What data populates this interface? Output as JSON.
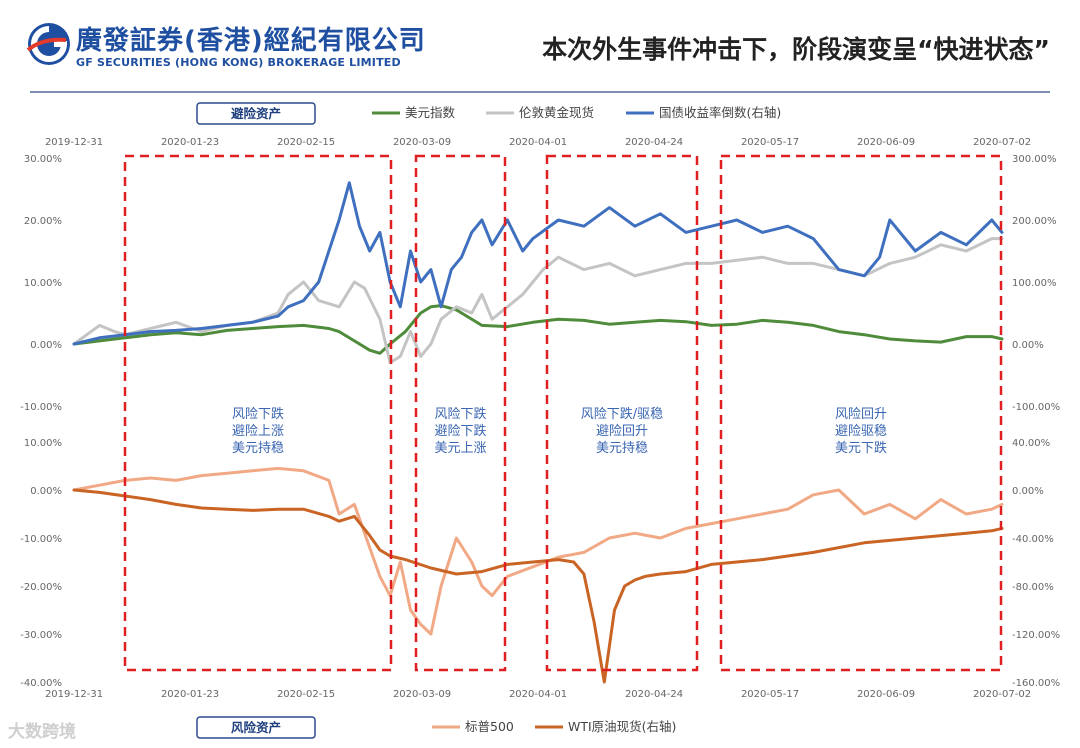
{
  "header": {
    "brand_cn": "廣發証券(香港)經紀有限公司",
    "brand_en": "GF SECURITIES (HONG KONG) BROKERAGE LIMITED",
    "title": "本次外生事件冲击下，阶段演变呈“快进状态”"
  },
  "watermark": "大数跨境",
  "chart_data": [
    {
      "type": "line",
      "panel_label": "避险资产",
      "x_ticks": [
        "2019-12-31",
        "2020-01-23",
        "2020-02-15",
        "2020-03-09",
        "2020-04-01",
        "2020-04-24",
        "2020-05-17",
        "2020-06-09",
        "2020-07-02"
      ],
      "y_left": {
        "ticks": [
          "30.00%",
          "20.00%",
          "10.00%",
          "0.00%",
          "-10.00%"
        ],
        "lim": [
          -10,
          30
        ]
      },
      "y_right": {
        "ticks": [
          "300.00%",
          "200.00%",
          "100.00%",
          "0.00%",
          "-100.00%"
        ],
        "lim": [
          -100,
          300
        ]
      },
      "series": [
        {
          "name": "美元指数",
          "axis": "left",
          "color": "#4e8b3a",
          "x": [
            0,
            5,
            10,
            15,
            20,
            25,
            30,
            35,
            40,
            45,
            50,
            52,
            55,
            58,
            60,
            62,
            65,
            68,
            70,
            72,
            75,
            80,
            85,
            90,
            95,
            100,
            105,
            110,
            115,
            120,
            125,
            130,
            135,
            140,
            145,
            150,
            155,
            160,
            165,
            170,
            175,
            180,
            182
          ],
          "values": [
            0,
            0.5,
            1,
            1.5,
            1.8,
            1.5,
            2.2,
            2.5,
            2.8,
            3,
            2.5,
            2,
            0.5,
            -1,
            -1.5,
            0,
            2,
            5,
            6,
            6.2,
            5.5,
            3,
            2.8,
            3.5,
            4,
            3.8,
            3.2,
            3.5,
            3.8,
            3.6,
            3,
            3.2,
            3.8,
            3.5,
            3,
            2,
            1.5,
            0.8,
            0.5,
            0.3,
            1.2,
            1.2,
            0.8
          ]
        },
        {
          "name": "伦敦黄金现货",
          "axis": "left",
          "color": "#c4c4c4",
          "x": [
            0,
            5,
            8,
            10,
            15,
            20,
            25,
            30,
            35,
            40,
            42,
            45,
            48,
            52,
            55,
            57,
            60,
            62,
            64,
            66,
            68,
            70,
            72,
            75,
            78,
            80,
            82,
            85,
            88,
            90,
            92,
            95,
            100,
            105,
            110,
            115,
            120,
            125,
            130,
            135,
            140,
            145,
            150,
            155,
            160,
            165,
            170,
            175,
            180,
            182
          ],
          "values": [
            0,
            3,
            2,
            1.5,
            2.5,
            3.5,
            2,
            3,
            3.5,
            5,
            8,
            10,
            7,
            6,
            10,
            9,
            4,
            -3,
            -2,
            2,
            -2,
            0,
            4,
            6,
            5,
            8,
            4,
            6,
            8,
            10,
            12,
            14,
            12,
            13,
            11,
            12,
            13,
            13,
            13.5,
            14,
            13,
            13,
            12,
            11,
            13,
            14,
            16,
            15,
            17,
            17
          ]
        },
        {
          "name": "国债收益率倒数(右轴)",
          "axis": "right",
          "color": "#3f6fbf",
          "x": [
            0,
            5,
            10,
            15,
            20,
            25,
            30,
            35,
            40,
            42,
            45,
            48,
            50,
            52,
            54,
            56,
            58,
            60,
            62,
            64,
            66,
            68,
            70,
            72,
            74,
            76,
            78,
            80,
            82,
            85,
            88,
            90,
            95,
            100,
            105,
            110,
            115,
            120,
            125,
            130,
            135,
            140,
            145,
            150,
            155,
            158,
            160,
            165,
            170,
            175,
            180,
            182
          ],
          "values": [
            0,
            10,
            15,
            20,
            22,
            25,
            30,
            35,
            45,
            60,
            70,
            100,
            150,
            200,
            260,
            190,
            150,
            180,
            100,
            60,
            150,
            100,
            120,
            60,
            120,
            140,
            180,
            200,
            160,
            200,
            150,
            170,
            200,
            190,
            220,
            190,
            210,
            180,
            190,
            200,
            180,
            190,
            170,
            120,
            110,
            140,
            200,
            150,
            180,
            160,
            200,
            180
          ]
        }
      ],
      "notes": [
        {
          "lines": [
            "风险下跌",
            "避险上涨",
            "美元持稳"
          ]
        },
        {
          "lines": [
            "风险下跌",
            "避险下跌",
            "美元上涨"
          ]
        },
        {
          "lines": [
            "风险下跌/驱稳",
            "避险回升",
            "美元持稳"
          ]
        },
        {
          "lines": [
            "风险回升",
            "避险驱稳",
            "美元下跌"
          ]
        }
      ]
    },
    {
      "type": "line",
      "panel_label": "风险资产",
      "x_ticks": [
        "2019-12-31",
        "2020-01-23",
        "2020-02-15",
        "2020-03-09",
        "2020-04-01",
        "2020-04-24",
        "2020-05-17",
        "2020-06-09",
        "2020-07-02"
      ],
      "y_left": {
        "ticks": [
          "10.00%",
          "0.00%",
          "-10.00%",
          "-20.00%",
          "-30.00%",
          "-40.00%"
        ],
        "lim": [
          -40,
          10
        ]
      },
      "y_right": {
        "ticks": [
          "40.00%",
          "0.00%",
          "-40.00%",
          "-80.00%",
          "-120.00%",
          "-160.00%"
        ],
        "lim": [
          -160,
          40
        ]
      },
      "series": [
        {
          "name": "标普500",
          "axis": "left",
          "color": "#f1a985",
          "x": [
            0,
            5,
            10,
            15,
            20,
            25,
            30,
            35,
            40,
            45,
            50,
            52,
            55,
            58,
            60,
            62,
            64,
            66,
            68,
            70,
            72,
            75,
            78,
            80,
            82,
            85,
            90,
            95,
            100,
            105,
            110,
            115,
            120,
            125,
            130,
            135,
            140,
            145,
            150,
            155,
            160,
            165,
            170,
            175,
            180,
            182
          ],
          "values": [
            0,
            1,
            2,
            2.5,
            2,
            3,
            3.5,
            4,
            4.5,
            4,
            2,
            -5,
            -3,
            -12,
            -18,
            -22,
            -15,
            -25,
            -28,
            -30,
            -20,
            -10,
            -15,
            -20,
            -22,
            -18,
            -16,
            -14,
            -13,
            -10,
            -9,
            -10,
            -8,
            -7,
            -6,
            -5,
            -4,
            -1,
            0,
            -5,
            -3,
            -6,
            -2,
            -5,
            -4,
            -3
          ]
        },
        {
          "name": "WTI原油现货(右轴)",
          "axis": "right",
          "color": "#c96424",
          "x": [
            0,
            5,
            10,
            15,
            20,
            25,
            30,
            35,
            40,
            45,
            50,
            52,
            55,
            58,
            60,
            62,
            65,
            70,
            75,
            80,
            85,
            90,
            95,
            98,
            100,
            102,
            104,
            106,
            108,
            110,
            112,
            115,
            120,
            125,
            130,
            135,
            140,
            145,
            150,
            155,
            160,
            165,
            170,
            175,
            180,
            182
          ],
          "values": [
            0,
            -2,
            -5,
            -8,
            -12,
            -15,
            -16,
            -17,
            -16,
            -16,
            -22,
            -26,
            -22,
            -38,
            -50,
            -55,
            -58,
            -65,
            -70,
            -68,
            -62,
            -60,
            -58,
            -60,
            -70,
            -110,
            -160,
            -100,
            -80,
            -75,
            -72,
            -70,
            -68,
            -62,
            -60,
            -58,
            -55,
            -52,
            -48,
            -44,
            -42,
            -40,
            -38,
            -36,
            -34,
            -32
          ]
        }
      ]
    }
  ]
}
